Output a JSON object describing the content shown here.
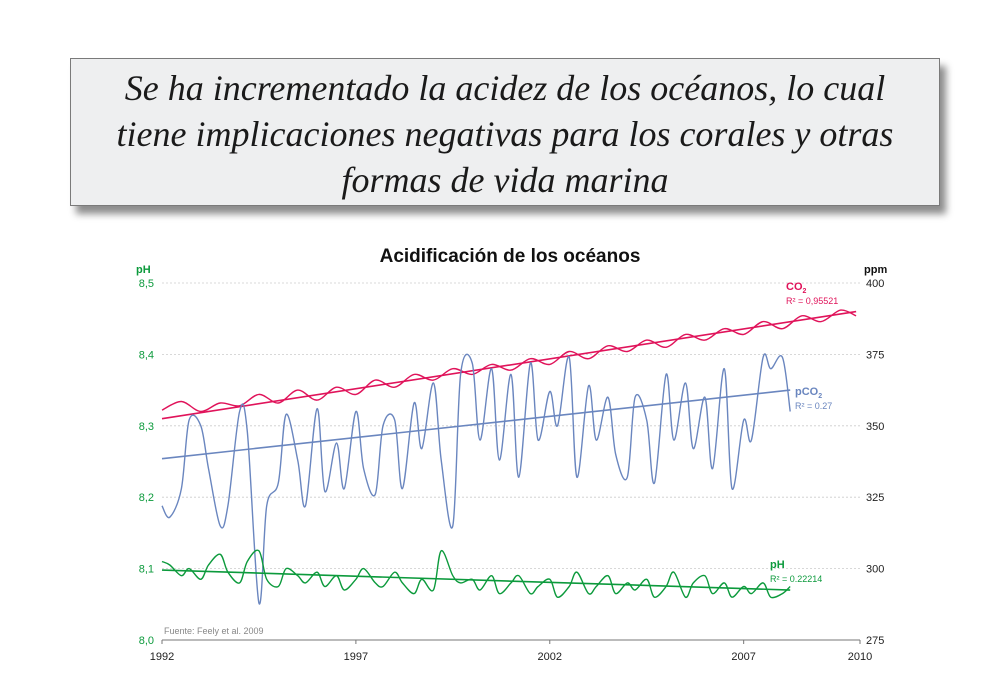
{
  "headline": {
    "lines": [
      "Se ha incrementado la acidez de los océanos, lo cual",
      "tiene implicaciones negativas para los corales y otras",
      "formas de vida marina"
    ]
  },
  "colors": {
    "co2": "#e0135a",
    "pco2": "#6a86bf",
    "ph": "#0c9a3c",
    "axis": "#777777",
    "grid": "#cccccc"
  },
  "chart_data": {
    "type": "line",
    "title": "Acidificación de los océanos",
    "source": "Fuente: Feely et al. 2009",
    "x_ticks": [
      "1992",
      "1997",
      "2002",
      "2007",
      "2010"
    ],
    "xlim": [
      1992,
      2010
    ],
    "left_axis": {
      "label": "pH",
      "ticks": [
        "8,5",
        "8,4",
        "8,3",
        "8,2",
        "8,1",
        "8,0"
      ],
      "range": [
        8.0,
        8.5
      ]
    },
    "right_axis": {
      "label": "ppm",
      "ticks": [
        "400",
        "375",
        "350",
        "325",
        "300",
        "275"
      ],
      "range": [
        275,
        400
      ]
    },
    "series": [
      {
        "name": "CO2",
        "label_main": "CO",
        "label_sub": "2",
        "r2_label": "R² = 0,95521",
        "axis": "right",
        "x": [
          1992.0,
          1992.5,
          1993.0,
          1993.5,
          1994.0,
          1994.5,
          1995.0,
          1995.5,
          1996.0,
          1996.5,
          1997.0,
          1997.5,
          1998.0,
          1998.5,
          1999.0,
          1999.5,
          2000.0,
          2000.5,
          2001.0,
          2001.5,
          2002.0,
          2002.5,
          2003.0,
          2003.5,
          2004.0,
          2004.5,
          2005.0,
          2005.5,
          2006.0,
          2006.5,
          2007.0,
          2007.5,
          2008.0,
          2008.5,
          2009.0,
          2009.5,
          2009.9
        ],
        "y": [
          355.5,
          358.5,
          355.0,
          358.0,
          357.0,
          361.0,
          358.0,
          362.5,
          359.0,
          363.5,
          361.0,
          366.0,
          363.5,
          368.0,
          366.0,
          370.0,
          368.0,
          371.5,
          369.5,
          373.5,
          371.5,
          376.0,
          373.5,
          378.0,
          376.0,
          380.0,
          377.5,
          382.0,
          380.0,
          384.0,
          382.0,
          386.5,
          384.0,
          388.5,
          386.5,
          390.5,
          388.5
        ],
        "trend": [
          [
            1992,
            352.5
          ],
          [
            2009.9,
            390.0
          ]
        ]
      },
      {
        "name": "pCO2",
        "label_main": "pCO",
        "label_sub": "2",
        "r2_label": "R² = 0.27",
        "axis": "right",
        "x": [
          1992.0,
          1992.2,
          1992.5,
          1992.7,
          1993.0,
          1993.2,
          1993.5,
          1993.7,
          1994.0,
          1994.2,
          1994.5,
          1994.7,
          1995.0,
          1995.2,
          1995.5,
          1995.7,
          1996.0,
          1996.2,
          1996.5,
          1996.7,
          1997.0,
          1997.2,
          1997.5,
          1997.7,
          1998.0,
          1998.2,
          1998.5,
          1998.7,
          1999.0,
          1999.2,
          1999.5,
          1999.7,
          2000.0,
          2000.2,
          2000.5,
          2000.7,
          2001.0,
          2001.2,
          2001.5,
          2001.7,
          2002.0,
          2002.2,
          2002.5,
          2002.7,
          2003.0,
          2003.2,
          2003.5,
          2003.7,
          2004.0,
          2004.2,
          2004.5,
          2004.7,
          2005.0,
          2005.2,
          2005.5,
          2005.7,
          2006.0,
          2006.2,
          2006.5,
          2006.7,
          2007.0,
          2007.2,
          2007.5,
          2007.7,
          2008.0,
          2008.2
        ],
        "y": [
          322,
          318,
          328,
          352,
          350,
          335,
          315,
          322,
          355,
          348,
          288,
          322,
          330,
          354,
          338,
          322,
          356,
          327,
          344,
          328,
          355,
          335,
          326,
          350,
          352,
          328,
          358,
          342,
          365,
          338,
          315,
          368,
          372,
          345,
          370,
          338,
          368,
          332,
          372,
          345,
          362,
          350,
          374,
          332,
          364,
          345,
          360,
          340,
          332,
          360,
          352,
          330,
          368,
          345,
          365,
          342,
          360,
          335,
          370,
          328,
          352,
          345,
          374,
          370,
          374,
          355
        ],
        "trend": [
          [
            1992,
            338.5
          ],
          [
            2008.2,
            362.5
          ]
        ]
      },
      {
        "name": "pH",
        "label_main": "pH",
        "r2_label": "R² = 0.22214",
        "axis": "left",
        "x": [
          1992.0,
          1992.2,
          1992.5,
          1992.7,
          1993.0,
          1993.2,
          1993.5,
          1993.7,
          1994.0,
          1994.2,
          1994.5,
          1994.7,
          1995.0,
          1995.2,
          1995.5,
          1995.7,
          1996.0,
          1996.2,
          1996.5,
          1996.7,
          1997.0,
          1997.2,
          1997.5,
          1997.7,
          1998.0,
          1998.2,
          1998.5,
          1998.7,
          1999.0,
          1999.2,
          1999.5,
          1999.7,
          2000.0,
          2000.2,
          2000.5,
          2000.7,
          2001.0,
          2001.2,
          2001.5,
          2001.7,
          2002.0,
          2002.2,
          2002.5,
          2002.7,
          2003.0,
          2003.2,
          2003.5,
          2003.7,
          2004.0,
          2004.2,
          2004.5,
          2004.7,
          2005.0,
          2005.2,
          2005.5,
          2005.7,
          2006.0,
          2006.2,
          2006.5,
          2006.7,
          2007.0,
          2007.2,
          2007.5,
          2007.7,
          2008.0,
          2008.2
        ],
        "y": [
          8.11,
          8.105,
          8.09,
          8.1,
          8.085,
          8.105,
          8.12,
          8.095,
          8.08,
          8.11,
          8.125,
          8.085,
          8.075,
          8.1,
          8.09,
          8.08,
          8.095,
          8.075,
          8.09,
          8.07,
          8.085,
          8.1,
          8.08,
          8.075,
          8.095,
          8.08,
          8.065,
          8.085,
          8.07,
          8.125,
          8.09,
          8.08,
          8.085,
          8.07,
          8.09,
          8.065,
          8.08,
          8.09,
          8.065,
          8.075,
          8.085,
          8.06,
          8.075,
          8.095,
          8.065,
          8.075,
          8.09,
          8.065,
          8.08,
          8.07,
          8.085,
          8.06,
          8.075,
          8.095,
          8.06,
          8.08,
          8.09,
          8.065,
          8.08,
          8.06,
          8.075,
          8.065,
          8.08,
          8.06,
          8.065,
          8.075
        ],
        "trend": [
          [
            1992,
            8.098
          ],
          [
            2008.2,
            8.07
          ]
        ]
      }
    ]
  }
}
